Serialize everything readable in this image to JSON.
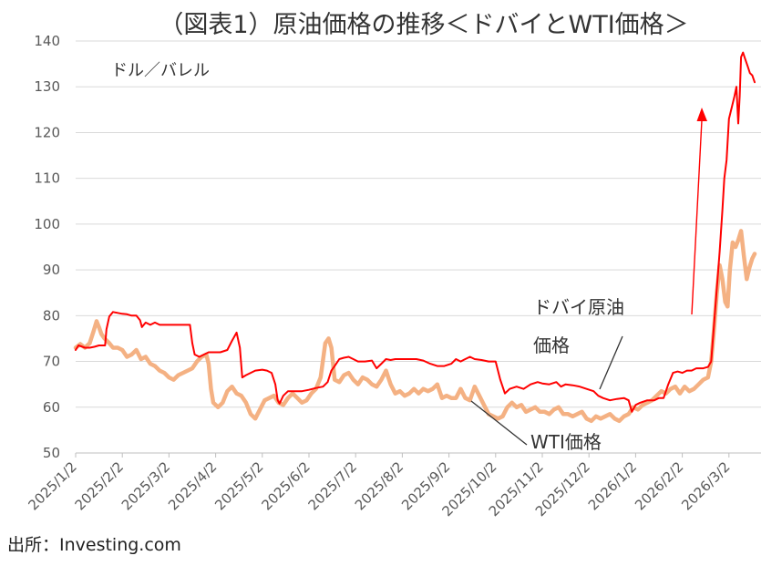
{
  "chart_data": {
    "type": "line",
    "title": "（図表1）原油価格の推移＜ドバイとWTI価格＞",
    "unit_label": "ドル／バレル",
    "source": "出所：Investing.com",
    "ylim": [
      50,
      140
    ],
    "yticks": [
      50,
      60,
      70,
      80,
      90,
      100,
      110,
      120,
      130,
      140
    ],
    "x_categories": [
      "2025/1/2",
      "2025/2/2",
      "2025/3/2",
      "2025/4/2",
      "2025/5/2",
      "2025/6/2",
      "2025/7/2",
      "2025/8/2",
      "2025/9/2",
      "2025/10/2",
      "2025/11/2",
      "2025/12/2",
      "2026/1/2",
      "2026/2/2",
      "2026/3/2"
    ],
    "grid": "horizontal",
    "annotations": {
      "dubai_label_line1": "ドバイ原油",
      "dubai_label_line2": "価格",
      "wti_label": "WTI価格"
    },
    "series": [
      {
        "name": "ドバイ原油価格",
        "color": "#ff0000",
        "points": [
          [
            0,
            72.5
          ],
          [
            0.06,
            73.5
          ],
          [
            0.12,
            73.3
          ],
          [
            0.2,
            73.0
          ],
          [
            0.3,
            73.0
          ],
          [
            0.4,
            73.2
          ],
          [
            0.5,
            73.5
          ],
          [
            0.63,
            73.5
          ],
          [
            0.66,
            77.0
          ],
          [
            0.72,
            79.8
          ],
          [
            0.8,
            80.8
          ],
          [
            0.9,
            80.6
          ],
          [
            1.0,
            80.4
          ],
          [
            1.1,
            80.3
          ],
          [
            1.2,
            80.0
          ],
          [
            1.3,
            80.0
          ],
          [
            1.38,
            79.0
          ],
          [
            1.42,
            77.5
          ],
          [
            1.5,
            78.5
          ],
          [
            1.6,
            78.0
          ],
          [
            1.7,
            78.5
          ],
          [
            1.8,
            78.0
          ],
          [
            1.9,
            78.0
          ],
          [
            2.0,
            78.0
          ],
          [
            2.2,
            78.0
          ],
          [
            2.45,
            78.0
          ],
          [
            2.5,
            74.0
          ],
          [
            2.55,
            71.5
          ],
          [
            2.65,
            71.0
          ],
          [
            2.75,
            71.5
          ],
          [
            2.85,
            72.0
          ],
          [
            3.0,
            72.0
          ],
          [
            3.1,
            72.0
          ],
          [
            3.25,
            72.5
          ],
          [
            3.35,
            74.5
          ],
          [
            3.45,
            76.3
          ],
          [
            3.52,
            73.0
          ],
          [
            3.57,
            66.5
          ],
          [
            3.65,
            67.0
          ],
          [
            3.75,
            67.5
          ],
          [
            3.85,
            68.0
          ],
          [
            4.0,
            68.2
          ],
          [
            4.1,
            68.0
          ],
          [
            4.2,
            67.5
          ],
          [
            4.28,
            65.0
          ],
          [
            4.33,
            61.5
          ],
          [
            4.37,
            60.8
          ],
          [
            4.45,
            62.5
          ],
          [
            4.55,
            63.5
          ],
          [
            4.7,
            63.5
          ],
          [
            4.85,
            63.5
          ],
          [
            5.0,
            63.8
          ],
          [
            5.15,
            64.2
          ],
          [
            5.3,
            64.5
          ],
          [
            5.4,
            65.5
          ],
          [
            5.48,
            68.0
          ],
          [
            5.55,
            69.0
          ],
          [
            5.65,
            70.5
          ],
          [
            5.75,
            70.8
          ],
          [
            5.85,
            71.0
          ],
          [
            5.95,
            70.5
          ],
          [
            6.05,
            70.0
          ],
          [
            6.2,
            70.0
          ],
          [
            6.35,
            70.2
          ],
          [
            6.45,
            68.5
          ],
          [
            6.55,
            69.5
          ],
          [
            6.65,
            70.5
          ],
          [
            6.75,
            70.3
          ],
          [
            6.85,
            70.5
          ],
          [
            7.0,
            70.5
          ],
          [
            7.15,
            70.5
          ],
          [
            7.3,
            70.5
          ],
          [
            7.45,
            70.2
          ],
          [
            7.6,
            69.5
          ],
          [
            7.75,
            69.0
          ],
          [
            7.9,
            69.0
          ],
          [
            8.05,
            69.5
          ],
          [
            8.15,
            70.5
          ],
          [
            8.25,
            70.0
          ],
          [
            8.35,
            70.5
          ],
          [
            8.45,
            71.0
          ],
          [
            8.55,
            70.5
          ],
          [
            8.7,
            70.3
          ],
          [
            8.85,
            70.0
          ],
          [
            9.0,
            70.0
          ],
          [
            9.1,
            66.0
          ],
          [
            9.2,
            63.0
          ],
          [
            9.3,
            64.0
          ],
          [
            9.45,
            64.5
          ],
          [
            9.6,
            64.0
          ],
          [
            9.75,
            65.0
          ],
          [
            9.9,
            65.5
          ],
          [
            10.0,
            65.2
          ],
          [
            10.15,
            65.0
          ],
          [
            10.3,
            65.5
          ],
          [
            10.4,
            64.5
          ],
          [
            10.5,
            65.0
          ],
          [
            10.65,
            64.8
          ],
          [
            10.8,
            64.5
          ],
          [
            10.95,
            64.0
          ],
          [
            11.1,
            63.5
          ],
          [
            11.2,
            62.5
          ],
          [
            11.3,
            62.0
          ],
          [
            11.45,
            61.5
          ],
          [
            11.6,
            61.8
          ],
          [
            11.75,
            62.0
          ],
          [
            11.85,
            61.5
          ],
          [
            11.92,
            59.0
          ],
          [
            12.0,
            60.5
          ],
          [
            12.1,
            61.0
          ],
          [
            12.25,
            61.5
          ],
          [
            12.4,
            61.5
          ],
          [
            12.5,
            62.0
          ],
          [
            12.6,
            62.0
          ],
          [
            12.7,
            65.0
          ],
          [
            12.8,
            67.5
          ],
          [
            12.9,
            67.8
          ],
          [
            13.0,
            67.5
          ],
          [
            13.1,
            68.0
          ],
          [
            13.2,
            68.0
          ],
          [
            13.3,
            68.5
          ],
          [
            13.45,
            68.5
          ],
          [
            13.55,
            68.8
          ],
          [
            13.62,
            70.0
          ],
          [
            13.68,
            78.0
          ],
          [
            13.74,
            86.0
          ],
          [
            13.8,
            94.0
          ],
          [
            13.86,
            103.0
          ],
          [
            13.9,
            110.0
          ],
          [
            13.95,
            114.0
          ],
          [
            14.0,
            123.0
          ],
          [
            14.06,
            125.5
          ],
          [
            14.12,
            128.0
          ],
          [
            14.16,
            130.0
          ],
          [
            14.2,
            122.0
          ],
          [
            14.23,
            128.0
          ],
          [
            14.26,
            136.5
          ],
          [
            14.3,
            137.5
          ],
          [
            14.35,
            136.0
          ],
          [
            14.4,
            134.5
          ],
          [
            14.45,
            133.0
          ],
          [
            14.5,
            132.5
          ],
          [
            14.55,
            131.0
          ]
        ]
      },
      {
        "name": "WTI価格",
        "color": "#f4b183",
        "points": [
          [
            0,
            73.0
          ],
          [
            0.1,
            73.8
          ],
          [
            0.2,
            73.0
          ],
          [
            0.3,
            74.0
          ],
          [
            0.38,
            76.5
          ],
          [
            0.45,
            78.8
          ],
          [
            0.5,
            77.5
          ],
          [
            0.55,
            76.0
          ],
          [
            0.62,
            75.0
          ],
          [
            0.72,
            74.0
          ],
          [
            0.8,
            73.0
          ],
          [
            0.9,
            73.0
          ],
          [
            1.0,
            72.5
          ],
          [
            1.1,
            71.0
          ],
          [
            1.2,
            71.5
          ],
          [
            1.3,
            72.5
          ],
          [
            1.4,
            70.5
          ],
          [
            1.5,
            71.0
          ],
          [
            1.6,
            69.5
          ],
          [
            1.7,
            69.0
          ],
          [
            1.8,
            68.0
          ],
          [
            1.9,
            67.5
          ],
          [
            2.0,
            66.5
          ],
          [
            2.1,
            66.0
          ],
          [
            2.2,
            67.0
          ],
          [
            2.3,
            67.5
          ],
          [
            2.4,
            68.0
          ],
          [
            2.5,
            68.5
          ],
          [
            2.6,
            70.0
          ],
          [
            2.7,
            71.0
          ],
          [
            2.8,
            71.5
          ],
          [
            2.85,
            69.5
          ],
          [
            2.9,
            64.0
          ],
          [
            2.95,
            61.0
          ],
          [
            3.05,
            60.0
          ],
          [
            3.15,
            61.0
          ],
          [
            3.25,
            63.5
          ],
          [
            3.35,
            64.5
          ],
          [
            3.45,
            63.0
          ],
          [
            3.55,
            62.5
          ],
          [
            3.65,
            61.0
          ],
          [
            3.75,
            58.5
          ],
          [
            3.85,
            57.5
          ],
          [
            3.95,
            59.5
          ],
          [
            4.05,
            61.5
          ],
          [
            4.15,
            62.0
          ],
          [
            4.25,
            62.5
          ],
          [
            4.35,
            61.0
          ],
          [
            4.45,
            60.5
          ],
          [
            4.55,
            62.0
          ],
          [
            4.65,
            63.0
          ],
          [
            4.75,
            62.0
          ],
          [
            4.85,
            61.0
          ],
          [
            4.95,
            61.5
          ],
          [
            5.05,
            63.0
          ],
          [
            5.15,
            64.0
          ],
          [
            5.25,
            66.5
          ],
          [
            5.35,
            74.0
          ],
          [
            5.42,
            75.0
          ],
          [
            5.48,
            73.0
          ],
          [
            5.55,
            66.0
          ],
          [
            5.65,
            65.5
          ],
          [
            5.75,
            67.0
          ],
          [
            5.85,
            67.5
          ],
          [
            5.95,
            66.0
          ],
          [
            6.05,
            65.0
          ],
          [
            6.15,
            66.5
          ],
          [
            6.25,
            66.0
          ],
          [
            6.35,
            65.0
          ],
          [
            6.45,
            64.5
          ],
          [
            6.55,
            66.0
          ],
          [
            6.65,
            68.0
          ],
          [
            6.75,
            65.0
          ],
          [
            6.85,
            63.0
          ],
          [
            6.95,
            63.5
          ],
          [
            7.05,
            62.5
          ],
          [
            7.15,
            63.0
          ],
          [
            7.25,
            64.0
          ],
          [
            7.35,
            63.0
          ],
          [
            7.45,
            64.0
          ],
          [
            7.55,
            63.5
          ],
          [
            7.65,
            64.0
          ],
          [
            7.75,
            65.0
          ],
          [
            7.85,
            62.0
          ],
          [
            7.95,
            62.5
          ],
          [
            8.05,
            62.0
          ],
          [
            8.15,
            62.0
          ],
          [
            8.25,
            64.0
          ],
          [
            8.35,
            62.0
          ],
          [
            8.45,
            61.5
          ],
          [
            8.55,
            64.5
          ],
          [
            8.65,
            62.5
          ],
          [
            8.75,
            60.5
          ],
          [
            8.85,
            58.5
          ],
          [
            8.95,
            58.0
          ],
          [
            9.05,
            57.5
          ],
          [
            9.15,
            58.0
          ],
          [
            9.25,
            60.0
          ],
          [
            9.35,
            61.0
          ],
          [
            9.45,
            60.0
          ],
          [
            9.55,
            60.5
          ],
          [
            9.65,
            59.0
          ],
          [
            9.75,
            59.5
          ],
          [
            9.85,
            60.0
          ],
          [
            9.95,
            59.0
          ],
          [
            10.05,
            59.0
          ],
          [
            10.15,
            58.5
          ],
          [
            10.25,
            59.5
          ],
          [
            10.35,
            60.0
          ],
          [
            10.45,
            58.5
          ],
          [
            10.55,
            58.5
          ],
          [
            10.65,
            58.0
          ],
          [
            10.75,
            58.5
          ],
          [
            10.85,
            59.0
          ],
          [
            10.95,
            57.5
          ],
          [
            11.05,
            57.0
          ],
          [
            11.15,
            58.0
          ],
          [
            11.25,
            57.5
          ],
          [
            11.35,
            58.0
          ],
          [
            11.45,
            58.5
          ],
          [
            11.55,
            57.5
          ],
          [
            11.65,
            57.0
          ],
          [
            11.75,
            58.0
          ],
          [
            11.85,
            58.5
          ],
          [
            11.95,
            60.0
          ],
          [
            12.05,
            59.5
          ],
          [
            12.15,
            60.5
          ],
          [
            12.25,
            61.0
          ],
          [
            12.35,
            61.5
          ],
          [
            12.45,
            62.5
          ],
          [
            12.55,
            63.5
          ],
          [
            12.65,
            63.0
          ],
          [
            12.75,
            64.0
          ],
          [
            12.85,
            64.5
          ],
          [
            12.95,
            63.0
          ],
          [
            13.05,
            64.5
          ],
          [
            13.15,
            63.5
          ],
          [
            13.25,
            64.0
          ],
          [
            13.35,
            65.0
          ],
          [
            13.45,
            66.0
          ],
          [
            13.55,
            66.5
          ],
          [
            13.62,
            70.0
          ],
          [
            13.68,
            77.0
          ],
          [
            13.74,
            85.0
          ],
          [
            13.8,
            91.0
          ],
          [
            13.86,
            88.0
          ],
          [
            13.92,
            83.0
          ],
          [
            13.97,
            82.0
          ],
          [
            14.02,
            90.0
          ],
          [
            14.08,
            96.0
          ],
          [
            14.14,
            95.0
          ],
          [
            14.2,
            96.5
          ],
          [
            14.26,
            98.5
          ],
          [
            14.32,
            93.0
          ],
          [
            14.38,
            88.0
          ],
          [
            14.44,
            90.5
          ],
          [
            14.5,
            92.5
          ],
          [
            14.55,
            93.5
          ]
        ]
      }
    ]
  }
}
